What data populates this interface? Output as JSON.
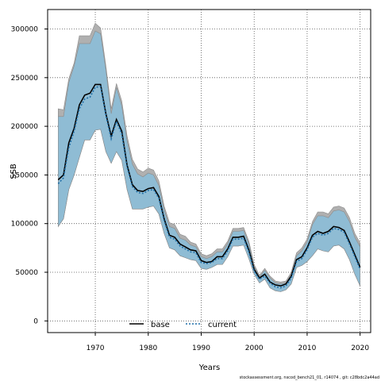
{
  "chart_data": {
    "type": "area",
    "xlabel": "Years",
    "ylabel": "SSB",
    "xlim": [
      1961,
      2022
    ],
    "ylim": [
      -12000,
      320000
    ],
    "x_ticks": [
      1970,
      1980,
      1990,
      2000,
      2010,
      2020
    ],
    "y_ticks": [
      0,
      50000,
      100000,
      150000,
      200000,
      250000,
      300000
    ],
    "x_tick_labels": [
      "1970",
      "1980",
      "1990",
      "2000",
      "2010",
      "2020"
    ],
    "y_tick_labels": [
      "0",
      "50000",
      "100000",
      "150000",
      "200000",
      "250000",
      "300000"
    ],
    "grid": true,
    "legend": {
      "placement": "bottom-center",
      "entries": [
        {
          "label": "base",
          "color": "#000000",
          "style": "solid"
        },
        {
          "label": "current",
          "color": "#1f6fa8",
          "style": "dotted"
        }
      ]
    },
    "footer": "stockassessment.org, nscod_bench21_01, r14074 , git: c28bdc2a44ad",
    "band_colors": {
      "base_band": "#b0b0b0",
      "current_band": "#8fbcd4",
      "band_edge": "#8a8a8a"
    },
    "x": [
      1963,
      1964,
      1965,
      1966,
      1967,
      1968,
      1969,
      1970,
      1971,
      1972,
      1973,
      1974,
      1975,
      1976,
      1977,
      1978,
      1979,
      1980,
      1981,
      1982,
      1983,
      1984,
      1985,
      1986,
      1987,
      1988,
      1989,
      1990,
      1991,
      1992,
      1993,
      1994,
      1995,
      1996,
      1997,
      1998,
      1999,
      2000,
      2001,
      2002,
      2003,
      2004,
      2005,
      2006,
      2007,
      2008,
      2009,
      2010,
      2011,
      2012,
      2013,
      2014,
      2015,
      2016,
      2017,
      2018,
      2019,
      2020
    ],
    "series": [
      {
        "name": "base",
        "values": [
          145000,
          150000,
          183000,
          198000,
          222000,
          232000,
          234000,
          243000,
          243000,
          213000,
          190000,
          207000,
          195000,
          160000,
          140000,
          134000,
          133000,
          136000,
          137000,
          128000,
          105000,
          88000,
          86000,
          79000,
          76000,
          73000,
          72000,
          62000,
          60000,
          61000,
          66000,
          66000,
          74000,
          86000,
          86000,
          87000,
          73000,
          53000,
          44000,
          48000,
          40000,
          37000,
          36000,
          38000,
          46000,
          63000,
          66000,
          75000,
          88000,
          92000,
          90000,
          92000,
          97000,
          96000,
          93000,
          81000,
          68000,
          55000
        ],
        "upper": [
          218000,
          217000,
          249000,
          265000,
          293000,
          293000,
          293000,
          306000,
          301000,
          262000,
          218000,
          244000,
          226000,
          190000,
          166000,
          156000,
          153000,
          157000,
          155000,
          144000,
          118000,
          101000,
          99000,
          89000,
          87000,
          81000,
          79000,
          69000,
          67000,
          69000,
          74000,
          74000,
          82000,
          95000,
          95000,
          96000,
          82000,
          58000,
          47000,
          54000,
          46000,
          41000,
          40000,
          41000,
          50000,
          70000,
          75000,
          84000,
          102000,
          112000,
          112000,
          110000,
          117000,
          118000,
          116000,
          106000,
          90000,
          80000
        ],
        "lower": [
          97000,
          105000,
          135000,
          150000,
          168000,
          186000,
          186000,
          196000,
          197000,
          174000,
          162000,
          174000,
          165000,
          135000,
          115000,
          115000,
          115000,
          117000,
          118000,
          110000,
          90000,
          75000,
          73000,
          67000,
          65000,
          63000,
          62000,
          54000,
          53000,
          55000,
          58000,
          58000,
          66000,
          77000,
          77000,
          78000,
          64000,
          48000,
          39000,
          43000,
          34000,
          31000,
          30000,
          32000,
          38000,
          55000,
          57000,
          61000,
          67000,
          74000,
          72000,
          71000,
          77000,
          78000,
          74000,
          63000,
          48000,
          36000
        ]
      },
      {
        "name": "current",
        "values": [
          141000,
          147000,
          178000,
          195000,
          218000,
          228000,
          230000,
          240000,
          241000,
          211000,
          187000,
          205000,
          192000,
          158000,
          138000,
          132000,
          131000,
          134000,
          135000,
          126000,
          103000,
          86000,
          84000,
          77000,
          74000,
          71000,
          70000,
          60000,
          59000,
          60000,
          64000,
          64000,
          72000,
          84000,
          84000,
          85000,
          71000,
          51000,
          43000,
          46000,
          39000,
          35000,
          34000,
          36000,
          44000,
          61000,
          64000,
          73000,
          86000,
          90000,
          88000,
          90000,
          95000,
          94000,
          91000,
          79000,
          66000,
          53000
        ],
        "upper": [
          210000,
          210000,
          245000,
          262000,
          285000,
          285000,
          285000,
          298000,
          295000,
          258000,
          213000,
          240000,
          221000,
          185000,
          161000,
          151000,
          148000,
          152000,
          150000,
          139000,
          114000,
          97000,
          95000,
          85000,
          83000,
          78000,
          76000,
          66000,
          64000,
          66000,
          71000,
          71000,
          79000,
          92000,
          92000,
          93000,
          79000,
          56000,
          45000,
          52000,
          44000,
          39000,
          38000,
          39000,
          48000,
          67000,
          72000,
          81000,
          99000,
          108000,
          108000,
          106000,
          113000,
          114000,
          112000,
          102000,
          86000,
          76000
        ],
        "lower": [
          97000,
          105000,
          135000,
          150000,
          168000,
          186000,
          186000,
          196000,
          197000,
          174000,
          162000,
          174000,
          165000,
          135000,
          115000,
          115000,
          115000,
          117000,
          118000,
          110000,
          90000,
          75000,
          73000,
          67000,
          65000,
          63000,
          62000,
          54000,
          53000,
          55000,
          58000,
          58000,
          66000,
          77000,
          77000,
          78000,
          64000,
          48000,
          39000,
          43000,
          34000,
          31000,
          30000,
          32000,
          38000,
          55000,
          57000,
          61000,
          67000,
          74000,
          72000,
          71000,
          77000,
          78000,
          74000,
          63000,
          48000,
          36000
        ]
      }
    ]
  }
}
